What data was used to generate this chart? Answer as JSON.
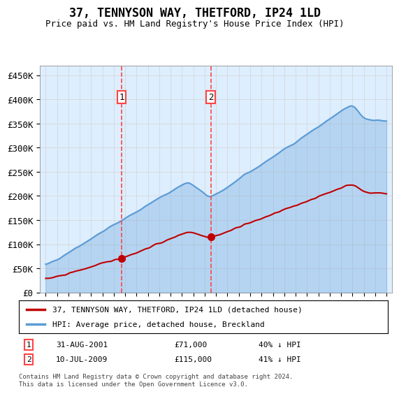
{
  "title": "37, TENNYSON WAY, THETFORD, IP24 1LD",
  "subtitle": "Price paid vs. HM Land Registry's House Price Index (HPI)",
  "hpi_label": "HPI: Average price, detached house, Breckland",
  "property_label": "37, TENNYSON WAY, THETFORD, IP24 1LD (detached house)",
  "footer": "Contains HM Land Registry data © Crown copyright and database right 2024.\nThis data is licensed under the Open Government Licence v3.0.",
  "sale1_date": "31-AUG-2001",
  "sale1_price": "£71,000",
  "sale1_note": "40% ↓ HPI",
  "sale2_date": "10-JUL-2009",
  "sale2_price": "£115,000",
  "sale2_note": "41% ↓ HPI",
  "sale1_x": 2001.67,
  "sale2_x": 2009.53,
  "sale1_y": 71000,
  "sale2_y": 115000,
  "hpi_color": "#5b9bd5",
  "property_color": "#c00000",
  "sale_marker_color": "#c00000",
  "vline_color": "#ff4444",
  "background_color": "#ddeeff",
  "plot_bg": "#ffffff",
  "ylim": [
    0,
    470000
  ],
  "yticks": [
    0,
    50000,
    100000,
    150000,
    200000,
    250000,
    300000,
    350000,
    400000,
    450000
  ],
  "ytick_labels": [
    "£0",
    "£50K",
    "£100K",
    "£150K",
    "£200K",
    "£250K",
    "£300K",
    "£350K",
    "£400K",
    "£450K"
  ],
  "xlim_start": 1994.5,
  "xlim_end": 2025.5
}
